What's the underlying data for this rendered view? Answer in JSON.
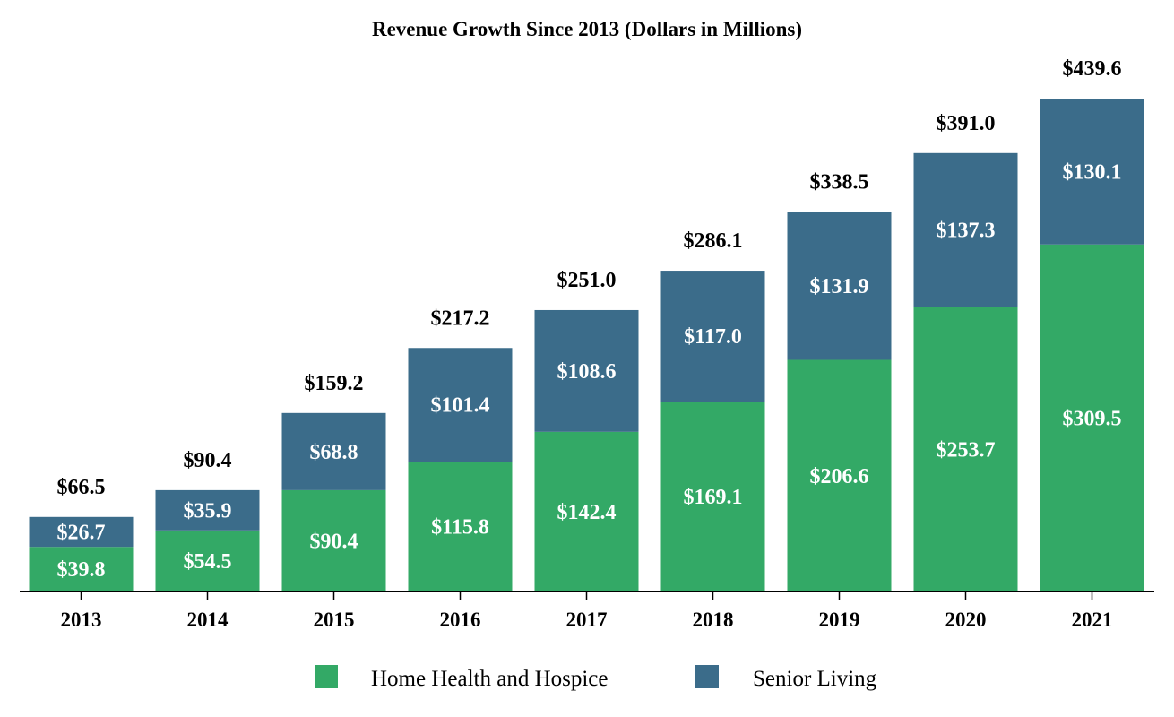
{
  "chart_data": {
    "type": "bar",
    "stacked": true,
    "title": "Revenue Growth Since 2013 (Dollars in Millions)",
    "xlabel": "",
    "ylabel": "",
    "ylim": [
      0,
      439.6
    ],
    "grid": false,
    "legend_position": "bottom",
    "categories": [
      "2013",
      "2014",
      "2015",
      "2016",
      "2017",
      "2018",
      "2019",
      "2020",
      "2021"
    ],
    "series": [
      {
        "name": "Home Health and Hospice",
        "color": "#33a966",
        "values": [
          39.8,
          54.5,
          90.4,
          115.8,
          142.4,
          169.1,
          206.6,
          253.7,
          309.5
        ],
        "labels": [
          "$39.8",
          "$54.5",
          "$90.4",
          "$115.8",
          "$142.4",
          "$169.1",
          "$206.6",
          "$253.7",
          "$309.5"
        ]
      },
      {
        "name": "Senior Living",
        "color": "#3b6c8a",
        "values": [
          26.7,
          35.9,
          68.8,
          101.4,
          108.6,
          117.0,
          131.9,
          137.3,
          130.1
        ],
        "labels": [
          "$26.7",
          "$35.9",
          "$68.8",
          "$101.4",
          "$108.6",
          "$117.0",
          "$131.9",
          "$137.3",
          "$130.1"
        ]
      }
    ],
    "totals": [
      66.5,
      90.4,
      159.2,
      217.2,
      251.0,
      286.1,
      338.5,
      391.0,
      439.6
    ],
    "total_labels": [
      "$66.5",
      "$90.4",
      "$159.2",
      "$217.2",
      "$251.0",
      "$286.1",
      "$338.5",
      "$391.0",
      "$439.6"
    ]
  }
}
